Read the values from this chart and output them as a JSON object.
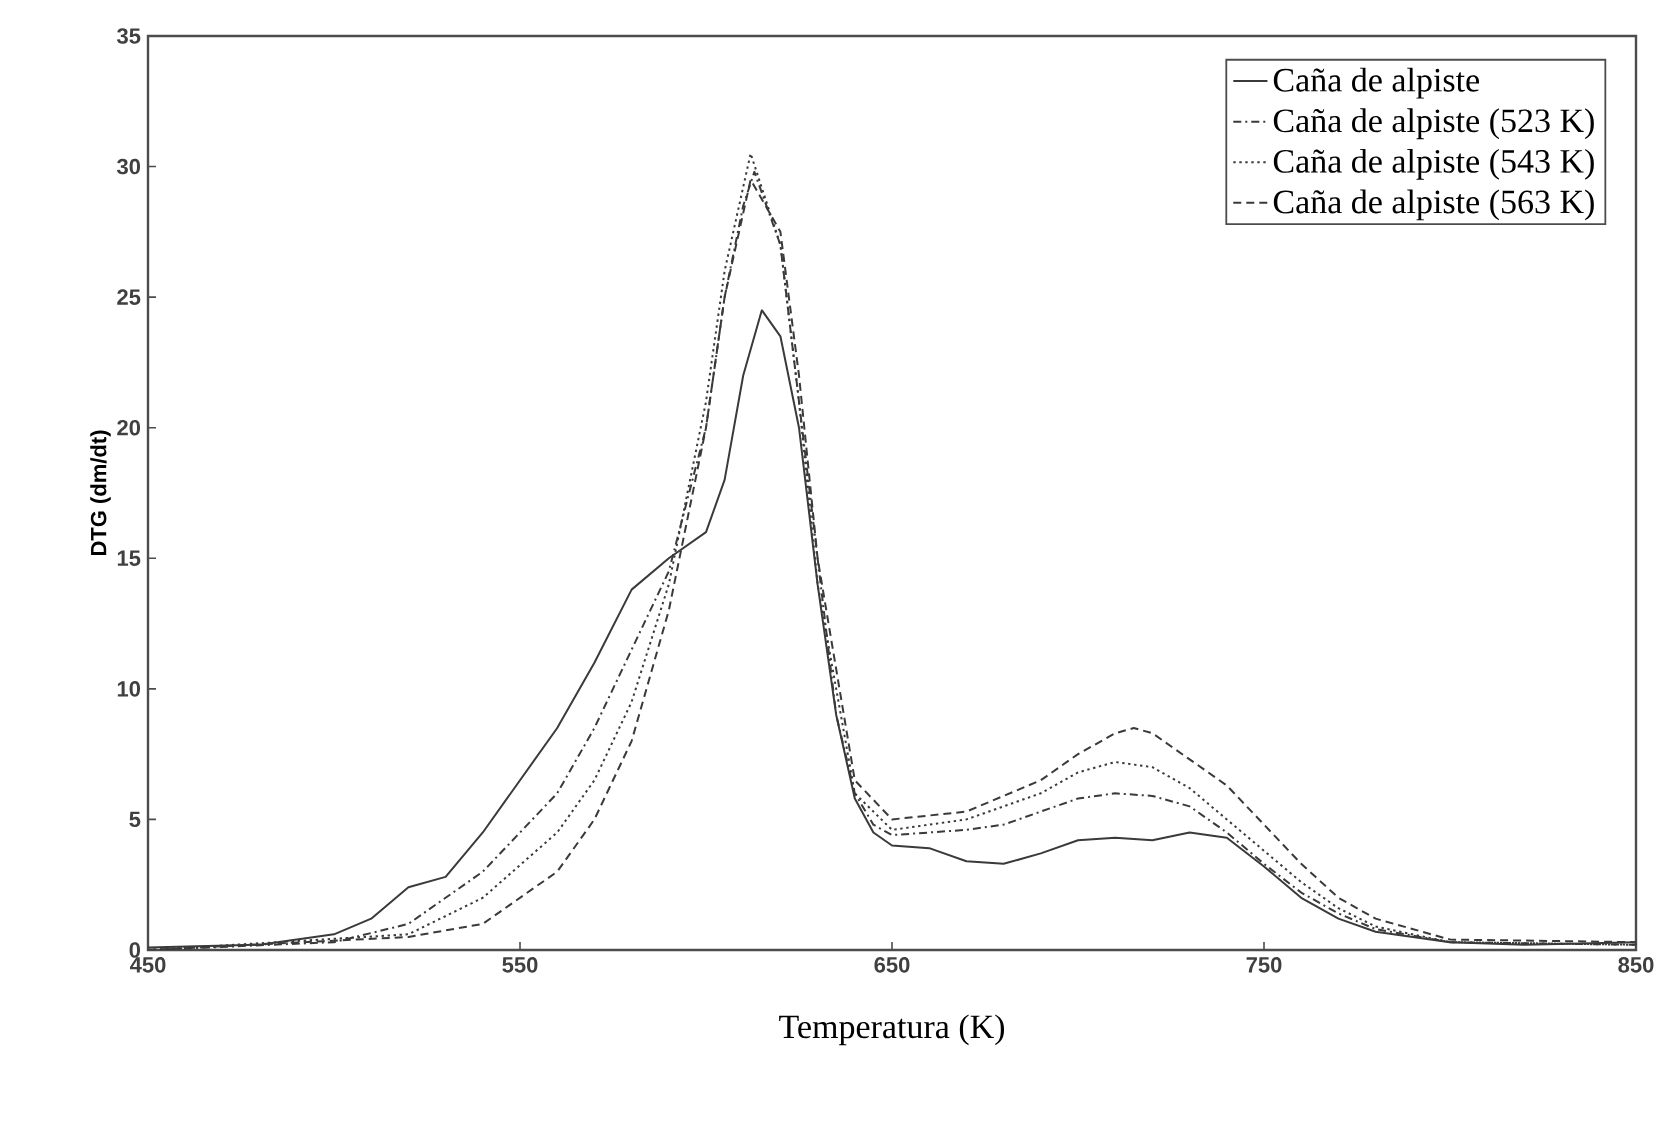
{
  "chart_data": {
    "type": "line",
    "xlabel": "Temperatura (K)",
    "ylabel": "DTG (dm/dt)",
    "xlim": [
      450,
      850
    ],
    "xticks": [
      450,
      550,
      650,
      750,
      850
    ],
    "ylim": [
      0,
      35
    ],
    "yticks": [
      0,
      5,
      10,
      15,
      20,
      25,
      30,
      35
    ],
    "grid": false,
    "legend": "top right",
    "marker": "none",
    "series": [
      {
        "name": "Caña de alpiste",
        "color": "#3a3a3a",
        "line_style": "solid",
        "x": [
          450,
          480,
          500,
          510,
          520,
          530,
          540,
          550,
          560,
          570,
          580,
          590,
          600,
          605,
          610,
          615,
          620,
          625,
          630,
          635,
          640,
          645,
          650,
          660,
          670,
          680,
          690,
          700,
          710,
          720,
          730,
          740,
          750,
          760,
          770,
          780,
          800,
          820,
          850
        ],
        "values": [
          0.1,
          0.2,
          0.6,
          1.2,
          2.4,
          2.8,
          4.5,
          6.5,
          8.5,
          11,
          13.8,
          15,
          16,
          18,
          22,
          24.5,
          23.5,
          20,
          14,
          9,
          5.8,
          4.5,
          4,
          3.9,
          3.4,
          3.3,
          3.7,
          4.2,
          4.3,
          4.2,
          4.5,
          4.3,
          3.2,
          2,
          1.2,
          0.7,
          0.3,
          0.2,
          0.3
        ]
      },
      {
        "name": "Caña de alpiste (523 K)",
        "color": "#3a3a3a",
        "line_style": "dashdot",
        "x": [
          450,
          500,
          520,
          540,
          560,
          570,
          580,
          590,
          600,
          605,
          610,
          613,
          620,
          625,
          630,
          635,
          640,
          645,
          650,
          670,
          680,
          690,
          700,
          710,
          720,
          730,
          740,
          750,
          760,
          770,
          780,
          800,
          850
        ],
        "values": [
          0,
          0.3,
          1,
          3,
          6,
          8.5,
          11.5,
          14.5,
          20,
          25,
          28.5,
          29.8,
          27,
          21,
          15,
          9,
          6,
          4.8,
          4.4,
          4.6,
          4.8,
          5.3,
          5.8,
          6,
          5.9,
          5.5,
          4.5,
          3.3,
          2.2,
          1.4,
          0.8,
          0.3,
          0.2
        ]
      },
      {
        "name": "Caña de alpiste (543 K)",
        "color": "#3a3a3a",
        "line_style": "dotted",
        "x": [
          450,
          520,
          540,
          560,
          570,
          580,
          590,
          600,
          605,
          612,
          620,
          625,
          630,
          640,
          650,
          670,
          690,
          700,
          710,
          720,
          730,
          740,
          750,
          760,
          770,
          780,
          800,
          850
        ],
        "values": [
          0,
          0.6,
          2,
          4.5,
          6.5,
          9.5,
          14,
          21,
          26,
          30.5,
          27,
          21,
          14,
          6,
          4.6,
          5,
          6,
          6.8,
          7.2,
          7,
          6.2,
          5,
          3.8,
          2.6,
          1.6,
          0.9,
          0.3,
          0.2
        ]
      },
      {
        "name": "Caña de alpiste (563 K)",
        "color": "#3a3a3a",
        "line_style": "dashed",
        "x": [
          450,
          520,
          540,
          560,
          570,
          580,
          590,
          600,
          605,
          612,
          620,
          625,
          630,
          640,
          650,
          670,
          690,
          700,
          710,
          715,
          720,
          730,
          740,
          750,
          760,
          770,
          780,
          800,
          850
        ],
        "values": [
          0,
          0.5,
          1,
          3,
          5,
          8,
          13,
          20,
          25,
          29.5,
          27.5,
          22,
          15,
          6.5,
          5,
          5.3,
          6.5,
          7.5,
          8.3,
          8.5,
          8.3,
          7.3,
          6.3,
          4.8,
          3.3,
          2,
          1.2,
          0.4,
          0.3
        ]
      }
    ]
  }
}
